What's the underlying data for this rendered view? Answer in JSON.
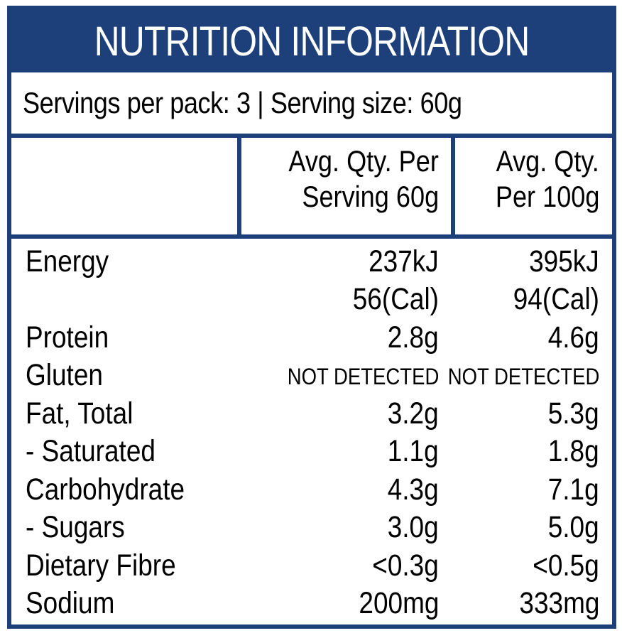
{
  "panel": {
    "title": "NUTRITION INFORMATION",
    "servings": "Servings per pack: 3 | Serving size: 60g",
    "col1_line1": "Avg. Qty. Per",
    "col1_line2": "Serving 60g",
    "col2_line1": "Avg. Qty.",
    "col2_line2": "Per 100g"
  },
  "rows": [
    {
      "label": "Energy",
      "per_serving": "237kJ",
      "per_100g": "395kJ"
    },
    {
      "label": "",
      "per_serving": "56(Cal)",
      "per_100g": "94(Cal)"
    },
    {
      "label": "Protein",
      "per_serving": "2.8g",
      "per_100g": "4.6g"
    },
    {
      "label": "Gluten",
      "per_serving": "NOT DETECTED",
      "per_100g": "NOT DETECTED"
    },
    {
      "label": "Fat, Total",
      "per_serving": "3.2g",
      "per_100g": "5.3g"
    },
    {
      "label": "- Saturated",
      "per_serving": "1.1g",
      "per_100g": "1.8g"
    },
    {
      "label": "Carbohydrate",
      "per_serving": "4.3g",
      "per_100g": "7.1g"
    },
    {
      "label": "- Sugars",
      "per_serving": "3.0g",
      "per_100g": "5.0g"
    },
    {
      "label": "Dietary Fibre",
      "per_serving": "<0.3g",
      "per_100g": "<0.5g"
    },
    {
      "label": "Sodium",
      "per_serving": "200mg",
      "per_100g": "333mg"
    }
  ],
  "colors": {
    "brand": "#1d3f7a",
    "background": "#ffffff"
  }
}
